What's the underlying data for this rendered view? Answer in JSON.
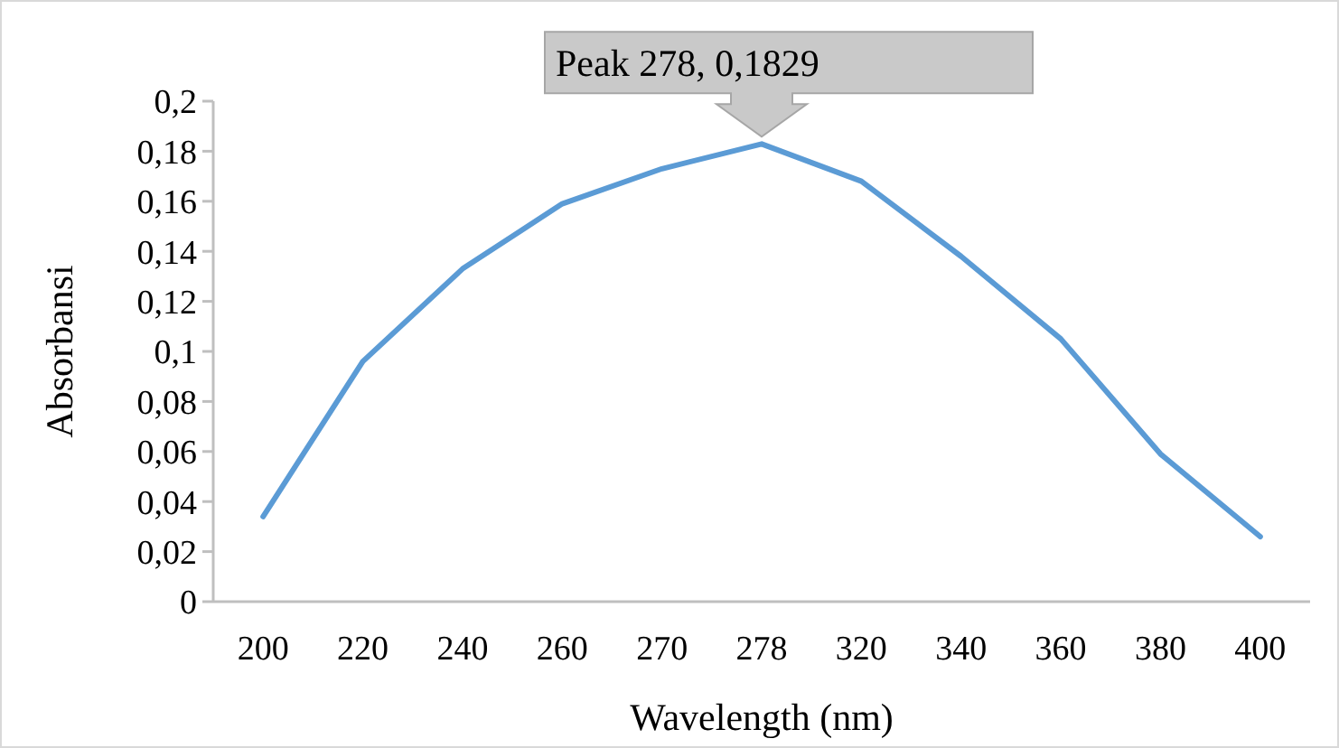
{
  "chart_data": {
    "type": "line",
    "xlabel": "Wavelength (nm)",
    "ylabel": "Absorbansi",
    "categories": [
      "200",
      "220",
      "240",
      "260",
      "270",
      "278",
      "320",
      "340",
      "360",
      "380",
      "400"
    ],
    "series": [
      {
        "color": "#5b9bd5",
        "values": [
          0.034,
          0.096,
          0.133,
          0.159,
          0.173,
          0.1829,
          0.168,
          0.138,
          0.105,
          0.059,
          0.026
        ]
      }
    ],
    "ylim": [
      0,
      0.2
    ],
    "yticks": [
      0,
      {
        "value": 0.02,
        "label": "0,02"
      },
      {
        "value": 0.04,
        "label": "0,04"
      },
      {
        "value": 0.06,
        "label": "0,06"
      },
      {
        "value": 0.08,
        "label": "0,08"
      },
      {
        "value": 0.1,
        "label": "0,1"
      },
      {
        "value": 0.12,
        "label": "0,12"
      },
      {
        "value": 0.14,
        "label": "0,14"
      },
      {
        "value": 0.16,
        "label": "0,16"
      },
      {
        "value": 0.18,
        "label": "0,18"
      },
      {
        "value": 0.2,
        "label": "0,2"
      }
    ],
    "annotations": [
      {
        "text": "Peak 278, 0,1829",
        "x": "278",
        "y": 0.1829
      }
    ],
    "grid": false,
    "marker": "none",
    "line_style": "solid"
  }
}
